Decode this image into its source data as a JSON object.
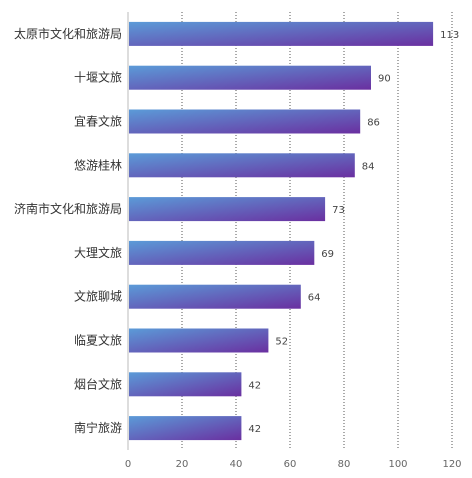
{
  "chart_data": {
    "type": "bar",
    "orientation": "horizontal",
    "categories": [
      "太原市文化和旅游局",
      "十堰文旅",
      "宜春文旅",
      "悠游桂林",
      "济南市文化和旅游局",
      "大理文旅",
      "文旅聊城",
      "临夏文旅",
      "烟台文旅",
      "南宁旅游"
    ],
    "values": [
      113,
      90,
      86,
      84,
      73,
      69,
      64,
      52,
      42,
      42
    ],
    "x_ticks": [
      0,
      20,
      40,
      60,
      80,
      100,
      120
    ],
    "xlim": [
      0,
      120
    ],
    "grid": "vertical dotted",
    "colors": {
      "bar_start": "#5b9bd8",
      "bar_end": "#6a2fa0",
      "grid": "#555555",
      "axis": "#bbbbbb"
    },
    "title": "",
    "xlabel": "",
    "ylabel": ""
  }
}
